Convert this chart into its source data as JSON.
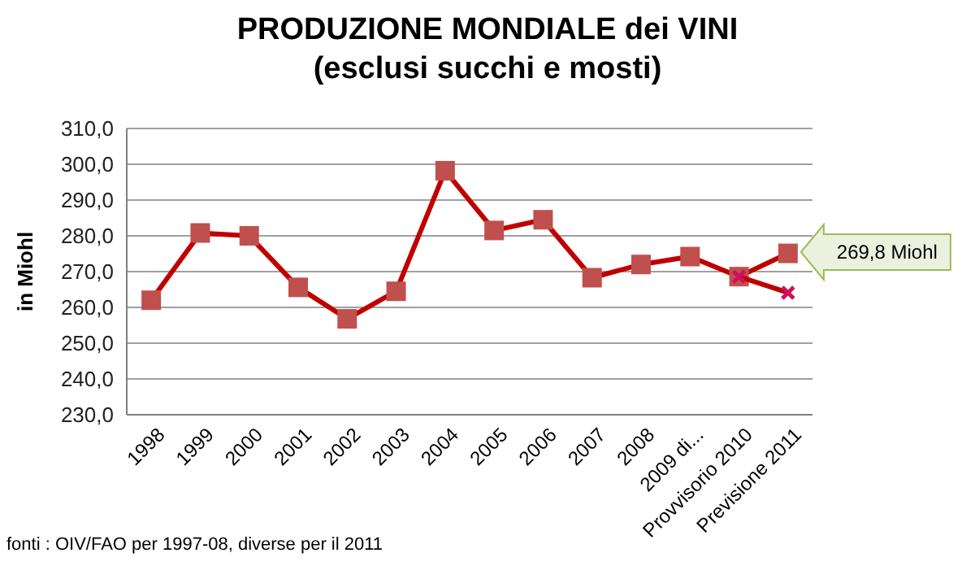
{
  "chart_data": {
    "type": "line",
    "title": "PRODUZIONE MONDIALE dei VINI\n(esclusi succhi e mosti)",
    "ylabel": "in Miohl",
    "categories": [
      "1998",
      "1999",
      "2000",
      "2001",
      "2002",
      "2003",
      "2004",
      "2005",
      "2006",
      "2007",
      "2008",
      "2009 di...",
      "Provvisorio 2010",
      "Previsione 2011"
    ],
    "series": [
      {
        "color": "#c00000",
        "marker": "square",
        "values": [
          262,
          280.8,
          280,
          265.6,
          256.8,
          264.5,
          298.2,
          281.5,
          284.5,
          268.3,
          272,
          274.2,
          268.6,
          275.1
        ]
      },
      {
        "color": "#c00000",
        "marker": "cross",
        "values": [
          null,
          null,
          null,
          null,
          null,
          null,
          null,
          null,
          null,
          null,
          null,
          null,
          268.6,
          264.1
        ]
      }
    ],
    "ylim": [
      230,
      310
    ],
    "yticks": [
      {
        "value": 230,
        "label": "230,0"
      },
      {
        "value": 240,
        "label": "240,0"
      },
      {
        "value": 250,
        "label": "250,0"
      },
      {
        "value": 260,
        "label": "260,0"
      },
      {
        "value": 270,
        "label": "270,0"
      },
      {
        "value": 280,
        "label": "280,0"
      },
      {
        "value": 290,
        "label": "290,0"
      },
      {
        "value": 300,
        "label": "300,0"
      },
      {
        "value": 310,
        "label": "310,0"
      }
    ],
    "grid": "y",
    "annotations": [
      "269,8 Miohl",
      "fonti : OIV/FAO  per 1997-08, diverse per il 2011"
    ]
  }
}
